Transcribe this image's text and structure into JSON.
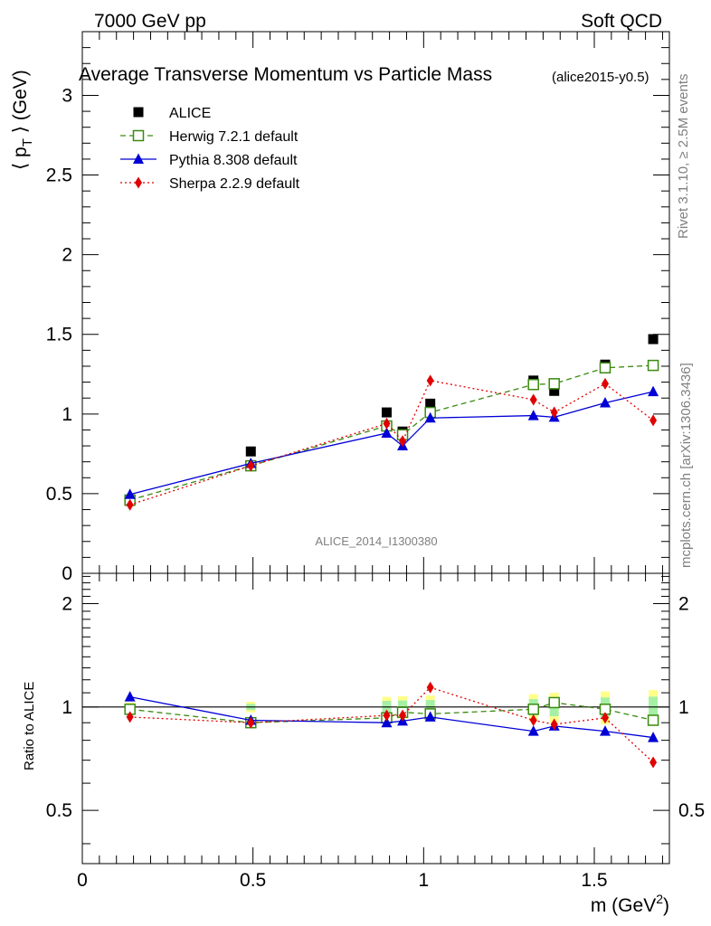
{
  "header": {
    "left": "7000 GeV pp",
    "right": "Soft QCD",
    "title": "Average Transverse Momentum vs Particle Mass",
    "subtitle": "(alice2015-y0.5)",
    "watermark": "ALICE_2014_I1300380",
    "side_top": "Rivet 3.1.10, ≥ 2.5M events",
    "side_bottom": "mcplots.cern.ch [arXiv:1306.3436]"
  },
  "chart_data": [
    {
      "type": "scatter",
      "panel": "main",
      "ylabel": "⟨ pT ⟩ (GeV)",
      "ylabel_parts": {
        "pre": "⟨ p",
        "sub": "T",
        "post": " ⟩ (GeV)"
      },
      "xlim": [
        0,
        1.72
      ],
      "ylim": [
        0,
        3.4
      ],
      "yticks": [
        0,
        0.5,
        1,
        1.5,
        2,
        2.5,
        3
      ],
      "ytick_labels": [
        "0",
        "0.5",
        "1",
        "1.5",
        "2",
        "2.5",
        "3"
      ],
      "legend_placement": "top-left",
      "x": [
        0.1396,
        0.4937,
        0.8917,
        0.9383,
        1.0195,
        1.3217,
        1.3826,
        1.5318,
        1.6725
      ],
      "series": [
        {
          "name": "ALICE",
          "color": "#000000",
          "marker": "square-filled",
          "line": "none",
          "values": [
            0.455,
            0.765,
            1.01,
            0.89,
            1.065,
            1.21,
            1.145,
            1.31,
            1.47
          ]
        },
        {
          "name": "Herwig 7.2.1 default",
          "color": "#3a8a10",
          "marker": "square-open",
          "line": "dashed",
          "values": [
            0.46,
            0.675,
            0.925,
            0.87,
            1.01,
            1.185,
            1.19,
            1.29,
            1.305
          ]
        },
        {
          "name": "Pythia 8.308 default",
          "color": "#0000d6",
          "marker": "triangle-filled",
          "line": "solid",
          "values": [
            0.495,
            0.69,
            0.88,
            0.8,
            0.975,
            0.99,
            0.98,
            1.07,
            1.14
          ]
        },
        {
          "name": "Sherpa 2.2.9 default",
          "color": "#e00000",
          "marker": "diamond-filled",
          "line": "dotted",
          "values": [
            0.43,
            0.675,
            0.94,
            0.83,
            1.21,
            1.09,
            1.01,
            1.19,
            0.96
          ]
        }
      ]
    },
    {
      "type": "scatter",
      "panel": "ratio",
      "ylabel": "Ratio to ALICE",
      "xlabel": "m (GeV²)",
      "xlabel_parts": {
        "pre": "m (GeV",
        "sup": "2",
        "post": ")"
      },
      "xlim": [
        0,
        1.72
      ],
      "ylim": [
        0.35,
        2.45
      ],
      "ylog": true,
      "yticks": [
        0.5,
        1,
        2
      ],
      "ytick_labels": [
        "0.5",
        "1",
        "2"
      ],
      "xticks": [
        0,
        0.5,
        1,
        1.5
      ],
      "xtick_labels": [
        "0",
        "0.5",
        "1",
        "1.5"
      ],
      "reference_line": 1,
      "x": [
        0.1396,
        0.4937,
        0.8917,
        0.9383,
        1.0195,
        1.3217,
        1.3826,
        1.5318,
        1.6725
      ],
      "band_halfwidth": [
        0.03,
        0.035,
        0.07,
        0.075,
        0.08,
        0.09,
        0.1,
        0.11,
        0.12
      ],
      "series": [
        {
          "name": "Herwig 7.2.1 default",
          "color": "#3a8a10",
          "marker": "square-open",
          "line": "dashed",
          "values": [
            0.985,
            0.9,
            0.93,
            0.965,
            0.955,
            0.985,
            1.03,
            0.985,
            0.915
          ]
        },
        {
          "name": "Pythia 8.308 default",
          "color": "#0000d6",
          "marker": "triangle-filled",
          "line": "solid",
          "values": [
            1.07,
            0.915,
            0.9,
            0.91,
            0.935,
            0.85,
            0.88,
            0.85,
            0.815
          ]
        },
        {
          "name": "Sherpa 2.2.9 default",
          "color": "#e00000",
          "marker": "diamond-filled",
          "line": "dotted",
          "values": [
            0.935,
            0.9,
            0.945,
            0.945,
            1.14,
            0.915,
            0.89,
            0.93,
            0.69
          ]
        }
      ]
    }
  ]
}
